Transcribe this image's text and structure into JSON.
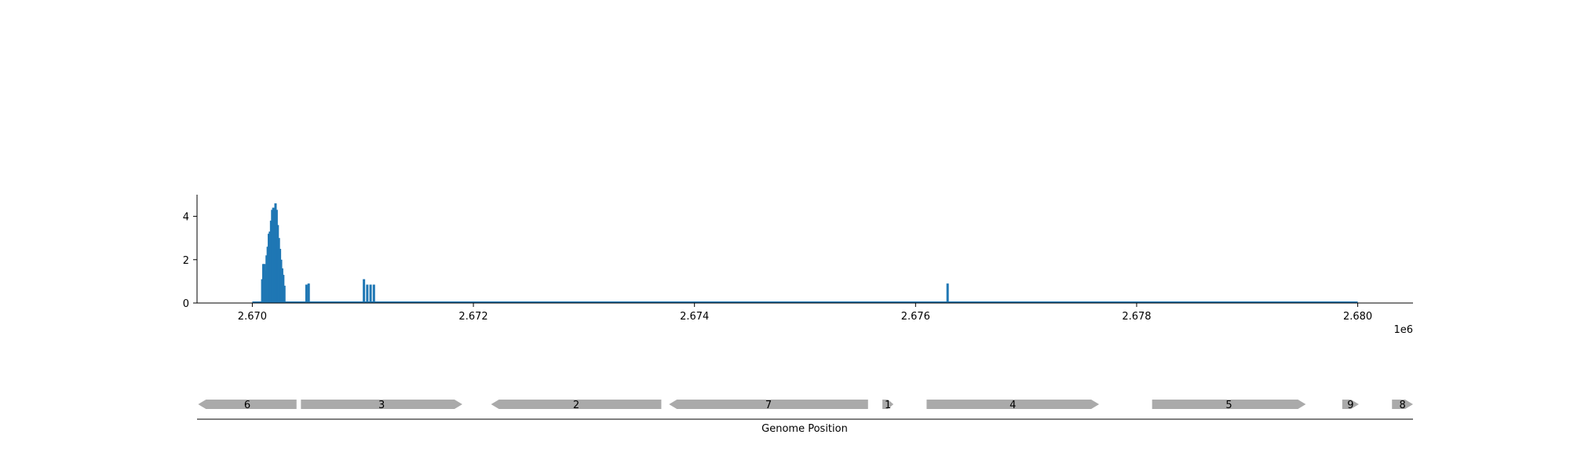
{
  "chart_data": [
    {
      "type": "bar",
      "title": "",
      "xlabel": "",
      "ylabel": "",
      "x_offset_label": "1e6",
      "xlim": [
        2669500,
        2680500
      ],
      "ylim": [
        0,
        5
      ],
      "xticks": [
        2670000,
        2672000,
        2674000,
        2676000,
        2678000,
        2680000
      ],
      "xtick_labels": [
        "2.670",
        "2.672",
        "2.674",
        "2.676",
        "2.678",
        "2.680"
      ],
      "yticks": [
        0,
        2,
        4
      ],
      "ytick_labels": [
        "0",
        "2",
        "4"
      ],
      "grid": false,
      "color": "#1f77b4",
      "baseline_range": [
        2670000,
        2680000
      ],
      "x": [
        2670090,
        2670100,
        2670110,
        2670120,
        2670130,
        2670140,
        2670150,
        2670160,
        2670170,
        2670180,
        2670190,
        2670200,
        2670210,
        2670220,
        2670230,
        2670240,
        2670250,
        2670260,
        2670270,
        2670280,
        2670290,
        2670490,
        2670510,
        2671010,
        2671040,
        2671070,
        2671100,
        2676290
      ],
      "values": [
        1.1,
        1.8,
        1.8,
        1.5,
        2.2,
        2.6,
        3.2,
        3.3,
        3.8,
        4.3,
        4.4,
        4.2,
        4.6,
        4.3,
        3.6,
        3.0,
        2.5,
        2.0,
        1.6,
        1.3,
        0.8,
        0.85,
        0.9,
        1.1,
        0.85,
        0.85,
        0.85,
        0.9
      ]
    },
    {
      "type": "gene_map",
      "xlabel": "Genome Position",
      "color": "#aaaaaa",
      "genes": [
        {
          "label": "6",
          "start": 2669510,
          "end": 2670400,
          "strand": "-"
        },
        {
          "label": "3",
          "start": 2670440,
          "end": 2671900,
          "strand": "+"
        },
        {
          "label": "2",
          "start": 2672160,
          "end": 2673700,
          "strand": "-"
        },
        {
          "label": "7",
          "start": 2673770,
          "end": 2675570,
          "strand": "-"
        },
        {
          "label": "1",
          "start": 2675700,
          "end": 2675800,
          "strand": "+"
        },
        {
          "label": "4",
          "start": 2676100,
          "end": 2677660,
          "strand": "+"
        },
        {
          "label": "5",
          "start": 2678140,
          "end": 2679530,
          "strand": "+"
        },
        {
          "label": "9",
          "start": 2679860,
          "end": 2680010,
          "strand": "+"
        },
        {
          "label": "8",
          "start": 2680310,
          "end": 2680500,
          "strand": "+"
        }
      ]
    }
  ]
}
